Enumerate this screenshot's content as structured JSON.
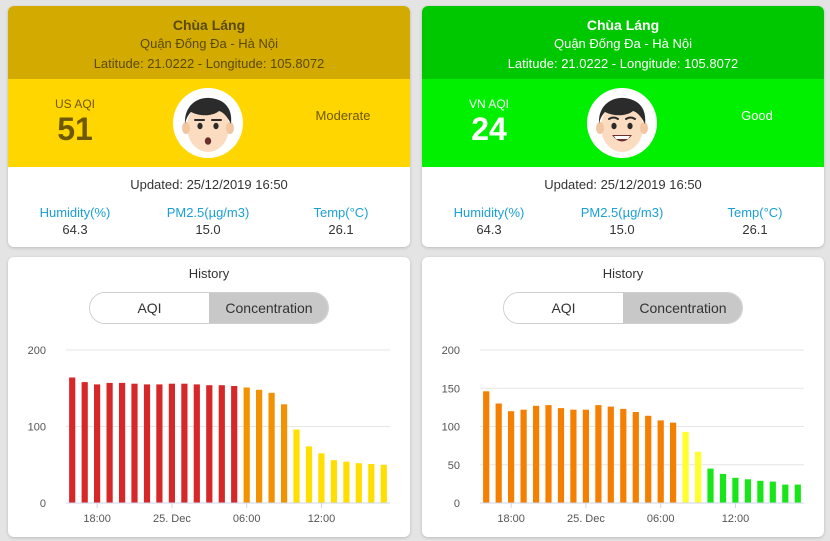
{
  "panels": [
    {
      "station": "Chùa Láng",
      "district": "Quận Đống Đa - Hà Nội",
      "coords": "Latitude: 21.0222 - Longitude: 105.8072",
      "aqi_label": "US AQI",
      "aqi_value": "51",
      "status": "Moderate",
      "updated": "Updated: 25/12/2019 16:50",
      "colors": {
        "header": "#d2aa00",
        "band": "#ffd600",
        "header_text": "#5a4a00",
        "value_text": "#6e5800",
        "status_text": "#6e5800"
      },
      "face_icon": "neutral-face-icon",
      "stats": [
        {
          "label": "Humidity(%)",
          "value": "64.3"
        },
        {
          "label": "PM2.5(µg/m3)",
          "value": "15.0"
        },
        {
          "label": "Temp(°C)",
          "value": "26.1"
        }
      ],
      "history": {
        "title": "History",
        "tabs": [
          "AQI",
          "Concentration"
        ],
        "active_tab": "Concentration"
      },
      "chart_data": {
        "type": "bar",
        "xlabel": "",
        "ylabel": "",
        "ylim": [
          0,
          200
        ],
        "y_ticks": [
          0,
          100,
          200
        ],
        "x_ticks": [
          "18:00",
          "25. Dec",
          "06:00",
          "12:00"
        ],
        "values": [
          164,
          158,
          155,
          157,
          157,
          156,
          155,
          155,
          156,
          156,
          155,
          154,
          154,
          153,
          151,
          148,
          144,
          129,
          96,
          74,
          65,
          56,
          54,
          52,
          51,
          50
        ],
        "colors": [
          "#d62828",
          "#d62828",
          "#d62828",
          "#d62828",
          "#d62828",
          "#d62828",
          "#d62828",
          "#d62828",
          "#d62828",
          "#d62828",
          "#d62828",
          "#d62828",
          "#d62828",
          "#d62828",
          "#f39200",
          "#f39200",
          "#f39200",
          "#f39200",
          "#ffde00",
          "#ffde00",
          "#ffde00",
          "#ffde00",
          "#ffde00",
          "#ffde00",
          "#ffde00",
          "#ffde00"
        ]
      }
    },
    {
      "station": "Chùa Láng",
      "district": "Quận Đống Đa - Hà Nội",
      "coords": "Latitude: 21.0222 - Longitude: 105.8072",
      "aqi_label": "VN AQI",
      "aqi_value": "24",
      "status": "Good",
      "updated": "Updated: 25/12/2019 16:50",
      "colors": {
        "header": "#00c800",
        "band": "#00f000",
        "header_text": "#ffffff",
        "value_text": "#ffffff",
        "status_text": "#ffffff"
      },
      "face_icon": "happy-face-icon",
      "stats": [
        {
          "label": "Humidity(%)",
          "value": "64.3"
        },
        {
          "label": "PM2.5(µg/m3)",
          "value": "15.0"
        },
        {
          "label": "Temp(°C)",
          "value": "26.1"
        }
      ],
      "history": {
        "title": "History",
        "tabs": [
          "AQI",
          "Concentration"
        ],
        "active_tab": "Concentration"
      },
      "chart_data": {
        "type": "bar",
        "xlabel": "",
        "ylabel": "",
        "ylim": [
          0,
          200
        ],
        "y_ticks": [
          0,
          50,
          100,
          150,
          200
        ],
        "x_ticks": [
          "18:00",
          "25. Dec",
          "06:00",
          "12:00"
        ],
        "values": [
          146,
          130,
          120,
          122,
          127,
          128,
          124,
          122,
          122,
          128,
          126,
          123,
          119,
          114,
          108,
          105,
          93,
          67,
          45,
          38,
          33,
          31,
          29,
          28,
          24,
          24
        ],
        "colors": [
          "#f57f00",
          "#f57f00",
          "#f57f00",
          "#f57f00",
          "#f57f00",
          "#f57f00",
          "#f57f00",
          "#f57f00",
          "#f57f00",
          "#f57f00",
          "#f57f00",
          "#f57f00",
          "#f57f00",
          "#f57f00",
          "#f57f00",
          "#f57f00",
          "#ffff2e",
          "#ffff2e",
          "#19e619",
          "#19e619",
          "#19e619",
          "#19e619",
          "#19e619",
          "#19e619",
          "#19e619",
          "#19e619"
        ]
      }
    }
  ]
}
